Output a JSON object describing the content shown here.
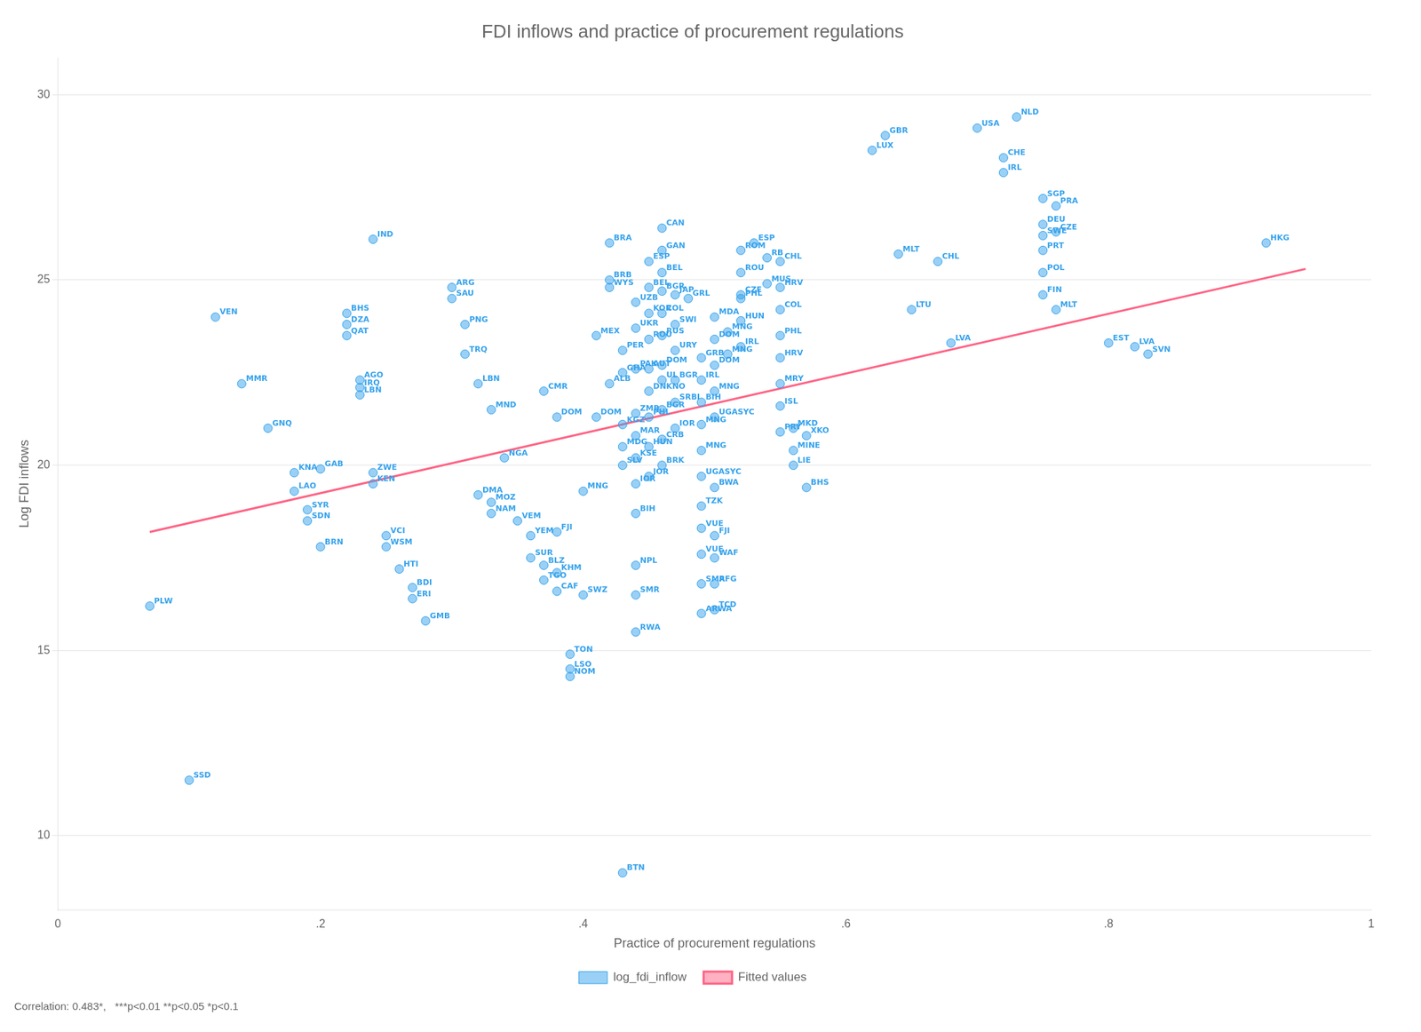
{
  "chart_data": {
    "type": "scatter",
    "title": "FDI inflows and practice of procurement regulations",
    "xlabel": "Practice of procurement regulations",
    "ylabel": "Log FDI inflows",
    "xlim": [
      0,
      1.0
    ],
    "ylim": [
      8,
      31
    ],
    "xticks": [
      0,
      {
        "value": 0.2,
        "label": ".2"
      },
      {
        "value": 0.4,
        "label": ".4"
      },
      {
        "value": 0.6,
        "label": ".6"
      },
      {
        "value": 0.8,
        "label": ".8"
      },
      1
    ],
    "yticks": [
      10,
      15,
      20,
      25,
      30
    ],
    "grid": "y",
    "legend": "bottom",
    "annotation": "Correlation: 0.483*,   ***p<0.01 **p<0.05 *p<0.1",
    "series": [
      {
        "name": "log_fdi_inflow",
        "type": "scatter",
        "marker": "circle",
        "x": [
          0.07,
          0.1,
          0.12,
          0.14,
          0.16,
          0.18,
          0.18,
          0.19,
          0.19,
          0.2,
          0.2,
          0.22,
          0.22,
          0.22,
          0.23,
          0.23,
          0.23,
          0.24,
          0.24,
          0.24,
          0.25,
          0.25,
          0.26,
          0.27,
          0.27,
          0.28,
          0.3,
          0.3,
          0.31,
          0.31,
          0.32,
          0.32,
          0.33,
          0.33,
          0.33,
          0.34,
          0.35,
          0.36,
          0.36,
          0.37,
          0.37,
          0.37,
          0.38,
          0.38,
          0.38,
          0.38,
          0.39,
          0.39,
          0.39,
          0.4,
          0.4,
          0.41,
          0.41,
          0.42,
          0.42,
          0.42,
          0.42,
          0.43,
          0.43,
          0.43,
          0.43,
          0.43,
          0.43,
          0.44,
          0.44,
          0.44,
          0.44,
          0.44,
          0.44,
          0.44,
          0.44,
          0.44,
          0.44,
          0.44,
          0.45,
          0.45,
          0.45,
          0.45,
          0.45,
          0.45,
          0.45,
          0.45,
          0.45,
          0.46,
          0.46,
          0.46,
          0.46,
          0.46,
          0.46,
          0.46,
          0.46,
          0.46,
          0.46,
          0.46,
          0.47,
          0.47,
          0.47,
          0.47,
          0.47,
          0.47,
          0.48,
          0.49,
          0.49,
          0.49,
          0.49,
          0.49,
          0.49,
          0.49,
          0.49,
          0.49,
          0.49,
          0.49,
          0.5,
          0.5,
          0.5,
          0.5,
          0.5,
          0.5,
          0.5,
          0.5,
          0.5,
          0.5,
          0.51,
          0.51,
          0.52,
          0.52,
          0.52,
          0.52,
          0.52,
          0.52,
          0.53,
          0.54,
          0.54,
          0.55,
          0.55,
          0.55,
          0.55,
          0.55,
          0.55,
          0.55,
          0.55,
          0.56,
          0.56,
          0.56,
          0.57,
          0.57,
          0.62,
          0.63,
          0.64,
          0.65,
          0.67,
          0.68,
          0.7,
          0.72,
          0.72,
          0.73,
          0.75,
          0.75,
          0.75,
          0.75,
          0.75,
          0.75,
          0.76,
          0.76,
          0.76,
          0.8,
          0.82,
          0.83,
          0.92
        ],
        "values": [
          16.2,
          11.5,
          24.0,
          22.2,
          21.0,
          19.8,
          19.3,
          18.8,
          18.5,
          17.8,
          19.9,
          24.1,
          23.8,
          23.5,
          22.3,
          22.1,
          21.9,
          26.1,
          19.8,
          19.5,
          18.1,
          17.8,
          17.2,
          16.7,
          16.4,
          15.8,
          24.8,
          24.5,
          23.8,
          23.0,
          22.2,
          19.2,
          21.5,
          19.0,
          18.7,
          20.2,
          18.5,
          18.1,
          17.5,
          22.0,
          17.3,
          16.9,
          21.3,
          16.6,
          18.2,
          17.1,
          14.9,
          14.5,
          14.3,
          16.5,
          19.3,
          23.5,
          21.3,
          26.0,
          25.0,
          24.8,
          22.2,
          23.1,
          22.5,
          21.1,
          20.5,
          20.0,
          9.0,
          24.4,
          23.7,
          22.6,
          21.4,
          20.8,
          20.2,
          19.5,
          18.7,
          17.3,
          16.5,
          15.5,
          25.5,
          24.8,
          24.1,
          23.4,
          22.6,
          22.0,
          21.3,
          20.5,
          19.7,
          26.4,
          25.8,
          25.2,
          24.7,
          24.1,
          23.5,
          22.7,
          22.3,
          21.5,
          20.7,
          20.0,
          24.6,
          23.8,
          23.1,
          22.3,
          21.7,
          21.0,
          24.5,
          22.9,
          22.3,
          21.7,
          21.1,
          20.4,
          19.7,
          18.9,
          18.3,
          17.6,
          16.8,
          16.0,
          24.0,
          23.4,
          22.7,
          22.0,
          21.3,
          19.4,
          18.1,
          17.5,
          16.8,
          16.1,
          23.6,
          23.0,
          25.8,
          25.2,
          24.6,
          23.9,
          23.2,
          24.5,
          26.0,
          25.6,
          24.9,
          25.5,
          24.8,
          24.2,
          23.5,
          22.9,
          22.2,
          21.6,
          20.9,
          21.0,
          20.4,
          20.0,
          19.4,
          20.8,
          28.5,
          28.9,
          25.7,
          24.2,
          25.5,
          23.3,
          29.1,
          28.3,
          27.9,
          29.4,
          27.2,
          26.5,
          26.2,
          25.8,
          25.2,
          24.6,
          27.0,
          26.3,
          24.2,
          23.3,
          23.2,
          23.0,
          26.0
        ],
        "labels": [
          "PLW",
          "SSD",
          "VEN",
          "MMR",
          "GNQ",
          "KNA",
          "LAO",
          "SYR",
          "SDN",
          "BRN",
          "GAB",
          "BHS",
          "DZA",
          "QAT",
          "AGO",
          "IRQ",
          "LBN",
          "IND",
          "ZWE",
          "KEN",
          "VCI",
          "WSM",
          "HTI",
          "BDI",
          "ERI",
          "GMB",
          "ARG",
          "SAU",
          "PNG",
          "TRQ",
          "LBN",
          "DMA",
          "MND",
          "MOZ",
          "NAM",
          "NGA",
          "VEM",
          "YEM",
          "SUR",
          "CMR",
          "BLZ",
          "TGO",
          "DOM",
          "CAF",
          "FJI",
          "KHM",
          "TON",
          "LSO",
          "NOM",
          "SWZ",
          "MNG",
          "MEX",
          "DOM",
          "BRA",
          "BRB",
          "WYS",
          "ALB",
          "PER",
          "GHA",
          "KGZ",
          "MDG",
          "SLV",
          "BTN",
          "UZB",
          "UKR",
          "PAK",
          "ZMB",
          "MAR",
          "KSE",
          "IOR",
          "BIH",
          "NPL",
          "SMR",
          "RWA",
          "ESP",
          "BEL",
          "KOR",
          "ROU",
          "AUT",
          "DNKNO",
          "PHL",
          "HUN",
          "JOR",
          "CAN",
          "GAN",
          "BEL",
          "BGR",
          "COL",
          "RUS",
          "DOM",
          "UL",
          "BGR",
          "CRB",
          "BRK",
          "JAP",
          "SWI",
          "URY",
          "BGR",
          "SRBI",
          "IOR",
          "GRL",
          "GRB",
          "IRL",
          "BIH",
          "MNG",
          "MNG",
          "UGASYC",
          "TZK",
          "VUE",
          "VUE",
          "SMR",
          "ARWA",
          "MDA",
          "DOM",
          "DOM",
          "MNG",
          "UGASYC",
          "BWA",
          "FJI",
          "WAF",
          "AFG",
          "TCD",
          "MNG",
          "MNG",
          "ROM",
          "ROU",
          "CZE",
          "HUN",
          "IRL",
          "PHL",
          "ESP",
          "RB",
          "MUS",
          "CHL",
          "HRV",
          "COL",
          "PHL",
          "HRV",
          "MRY",
          "ISL",
          "PRY",
          "MKD",
          "MINE",
          "LIE",
          "BHS",
          "XKO",
          "LUX",
          "GBR",
          "MLT",
          "LTU",
          "CHL",
          "LVA",
          "USA",
          "CHE",
          "IRL",
          "NLD",
          "SGP",
          "DEU",
          "SWE",
          "PRT",
          "POL",
          "FIN",
          "PRA",
          "CZE",
          "MLT",
          "EST",
          "LVA",
          "SVN",
          "HKG"
        ]
      },
      {
        "name": "Fitted values",
        "type": "line",
        "line_style": "solid",
        "x": [
          0.07,
          0.95
        ],
        "values": [
          18.2,
          25.3
        ]
      }
    ]
  }
}
